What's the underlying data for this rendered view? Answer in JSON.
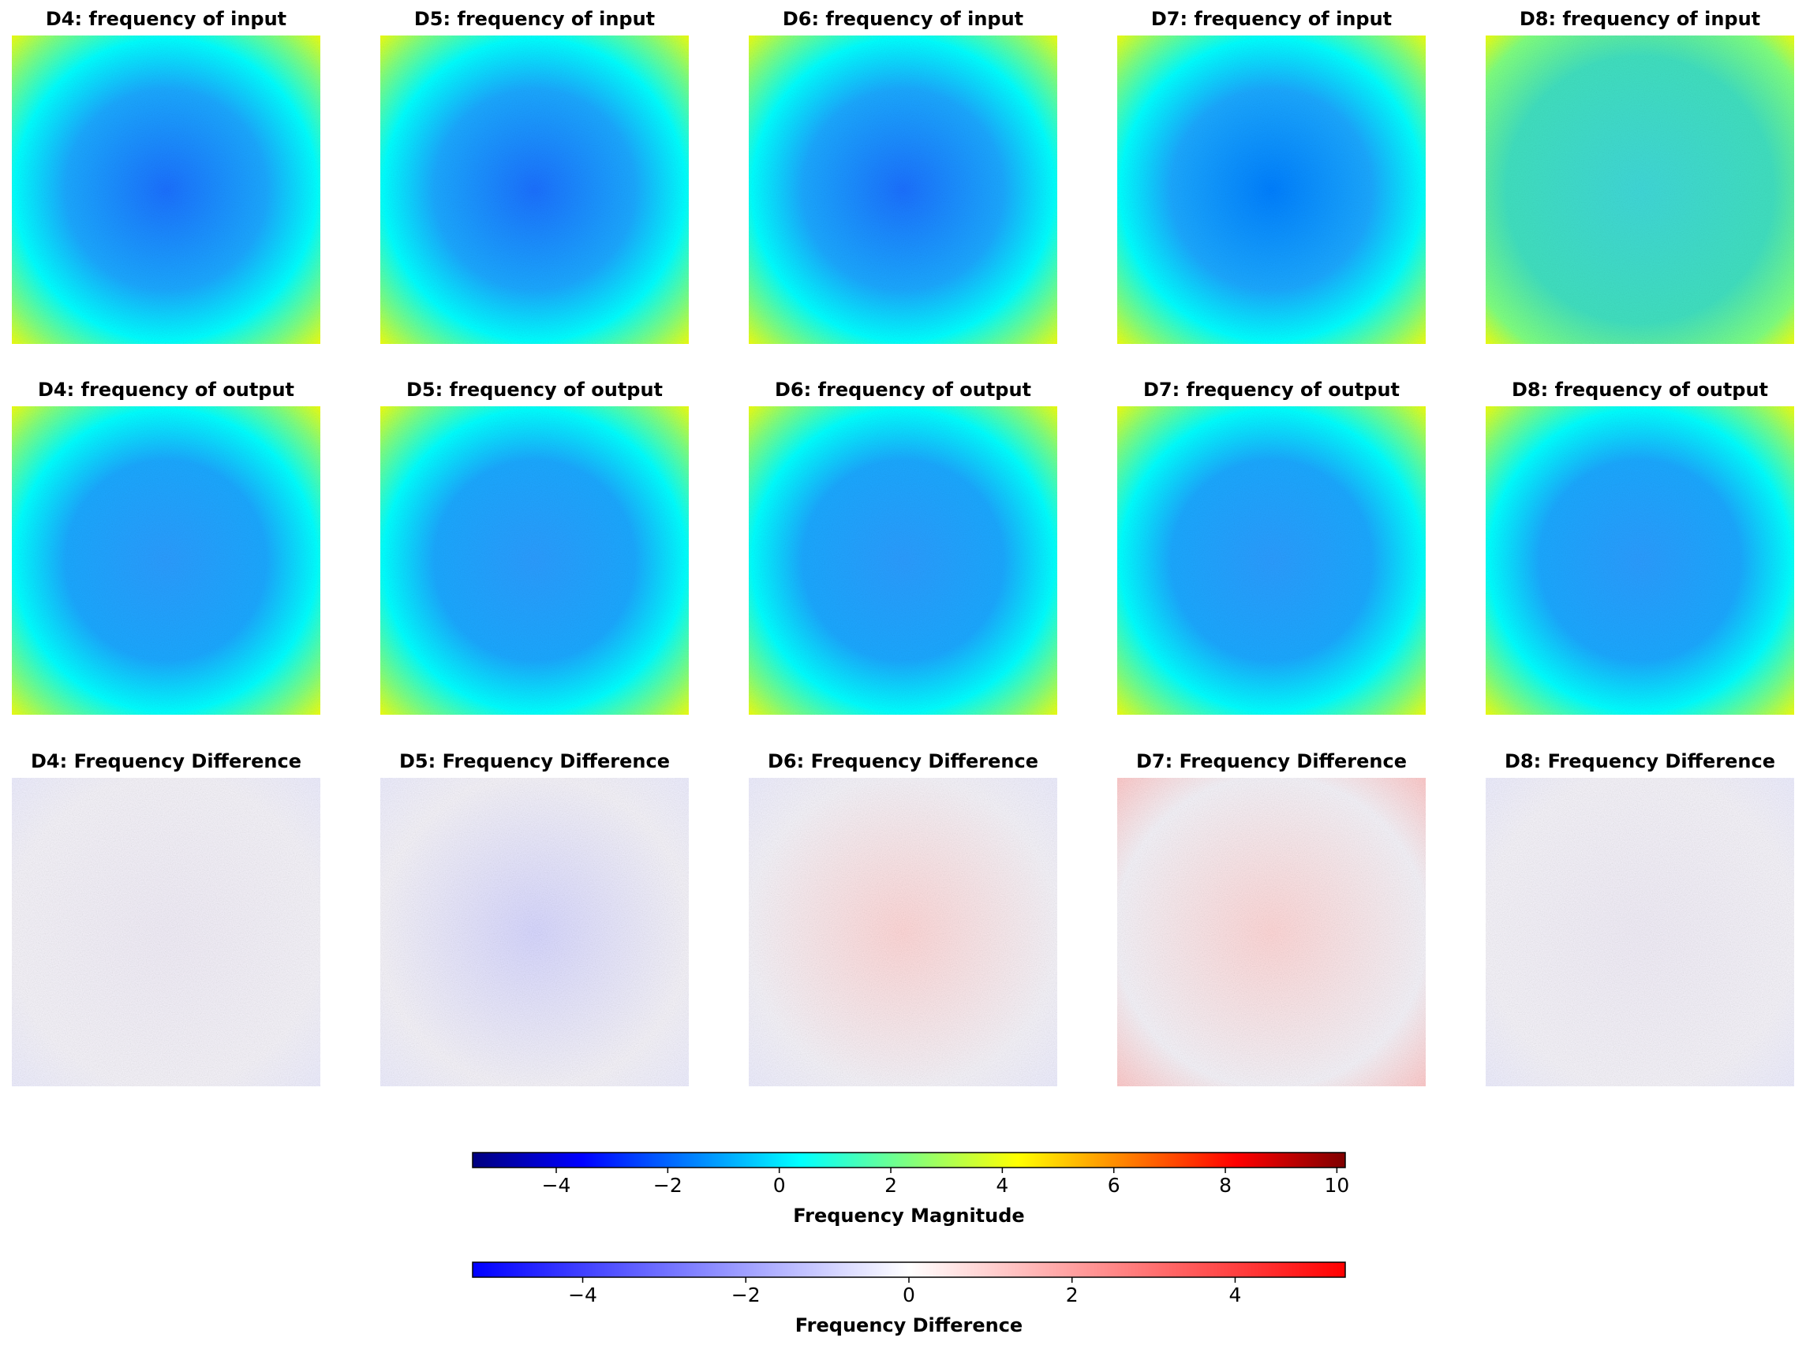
{
  "chart_data": [
    {
      "type": "heatmap",
      "title": "D4: frequency of input",
      "colormap": "jet"
    },
    {
      "type": "heatmap",
      "title": "D5: frequency of input",
      "colormap": "jet"
    },
    {
      "type": "heatmap",
      "title": "D6: frequency of input",
      "colormap": "jet"
    },
    {
      "type": "heatmap",
      "title": "D7: frequency of input",
      "colormap": "jet"
    },
    {
      "type": "heatmap",
      "title": "D8: frequency of input",
      "colormap": "jet"
    },
    {
      "type": "heatmap",
      "title": "D4: frequency of output",
      "colormap": "jet"
    },
    {
      "type": "heatmap",
      "title": "D5: frequency of output",
      "colormap": "jet"
    },
    {
      "type": "heatmap",
      "title": "D6: frequency of output",
      "colormap": "jet"
    },
    {
      "type": "heatmap",
      "title": "D7: frequency of output",
      "colormap": "jet"
    },
    {
      "type": "heatmap",
      "title": "D8: frequency of output",
      "colormap": "jet"
    },
    {
      "type": "heatmap",
      "title": "D4: Frequency Difference",
      "colormap": "bwr"
    },
    {
      "type": "heatmap",
      "title": "D5: Frequency Difference",
      "colormap": "bwr"
    },
    {
      "type": "heatmap",
      "title": "D6: Frequency Difference",
      "colormap": "bwr"
    },
    {
      "type": "heatmap",
      "title": "D7: Frequency Difference",
      "colormap": "bwr"
    },
    {
      "type": "heatmap",
      "title": "D8: Frequency Difference",
      "colormap": "bwr"
    },
    {
      "type": "colorbar",
      "colormap": "jet",
      "xlabel": "Frequency Magnitude",
      "xlim": [
        -5.5,
        10.15
      ],
      "colors": [
        "#00007f",
        "#0000ff",
        "#007fff",
        "#00ffff",
        "#7fff7f",
        "#ffff00",
        "#ff7f00",
        "#ff0000",
        "#7f0000"
      ],
      "xticks": [
        {
          "value": -4,
          "label": "−4"
        },
        {
          "value": -2,
          "label": "−2"
        },
        0,
        2,
        4,
        6,
        8,
        10
      ]
    },
    {
      "type": "colorbar",
      "colormap": "bwr",
      "xlabel": "Frequency Difference",
      "xlim": [
        -5.35,
        5.35
      ],
      "colors": [
        "#0000ff",
        "#ffffff",
        "#ff0000"
      ],
      "xticks": [
        {
          "value": -4,
          "label": "−4"
        },
        {
          "value": -2,
          "label": "−2"
        },
        0,
        2,
        4
      ]
    }
  ]
}
